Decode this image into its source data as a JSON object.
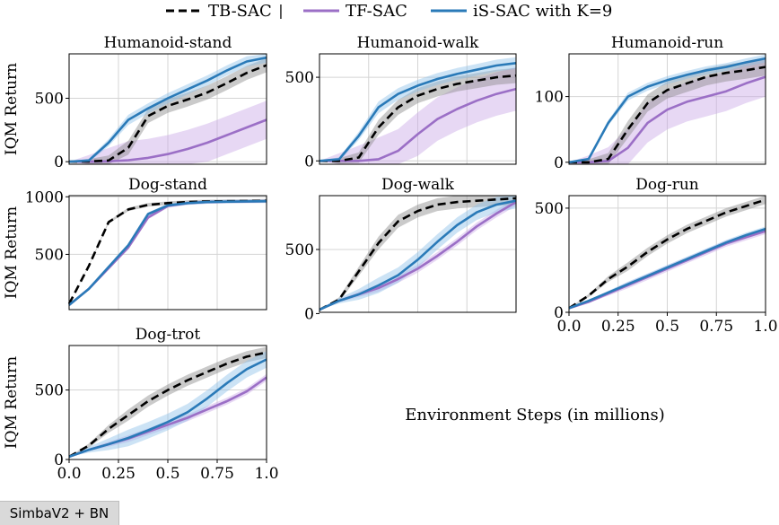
{
  "legend": {
    "items": [
      {
        "label": "TB-SAC",
        "color": "#000000",
        "dashed": true
      },
      {
        "label": "TF-SAC",
        "color": "#9b6fc6",
        "dashed": false
      },
      {
        "label": "iS-SAC with K=9",
        "color": "#2a7ab8",
        "dashed": false
      }
    ],
    "separator": "|"
  },
  "colors": {
    "tb": "#000000",
    "tb_band": "#8a8a8a",
    "tf": "#9b6fc6",
    "tf_band": "#c9a9e6",
    "is": "#2a7ab8",
    "is_band": "#8ec0e8"
  },
  "xlabel": "Environment Steps (in millions)",
  "footer_badge": "SimbaV2 + BN",
  "chart_data": [
    {
      "type": "line",
      "title": "Humanoid-stand",
      "ylabel": "IQM Return",
      "xlim": [
        0,
        1
      ],
      "ylim": [
        -20,
        850
      ],
      "yticks": [
        0,
        500
      ],
      "xticks": [],
      "x": [
        0,
        0.1,
        0.2,
        0.3,
        0.4,
        0.5,
        0.6,
        0.7,
        0.8,
        0.9,
        1.0
      ],
      "series": [
        {
          "name": "TB-SAC",
          "values": [
            0,
            2,
            10,
            110,
            360,
            440,
            490,
            545,
            620,
            700,
            760
          ],
          "band": 55
        },
        {
          "name": "TF-SAC",
          "values": [
            0,
            0,
            3,
            12,
            30,
            60,
            100,
            150,
            210,
            270,
            330
          ],
          "band": 150
        },
        {
          "name": "iS-SAC with K=9",
          "values": [
            0,
            10,
            150,
            330,
            420,
            500,
            570,
            640,
            720,
            790,
            820
          ],
          "band": 40
        }
      ]
    },
    {
      "type": "line",
      "title": "Humanoid-walk",
      "ylabel": "",
      "xlim": [
        0,
        1
      ],
      "ylim": [
        -20,
        640
      ],
      "yticks": [
        0,
        500
      ],
      "xticks": [],
      "x": [
        0,
        0.1,
        0.2,
        0.3,
        0.4,
        0.5,
        0.6,
        0.7,
        0.8,
        0.9,
        1.0
      ],
      "series": [
        {
          "name": "TB-SAC",
          "values": [
            0,
            0,
            20,
            200,
            320,
            390,
            430,
            460,
            480,
            500,
            510
          ],
          "band": 45
        },
        {
          "name": "TF-SAC",
          "values": [
            0,
            0,
            0,
            10,
            60,
            160,
            250,
            310,
            360,
            400,
            430
          ],
          "band": 130
        },
        {
          "name": "iS-SAC with K=9",
          "values": [
            0,
            10,
            150,
            320,
            400,
            450,
            490,
            520,
            545,
            570,
            585
          ],
          "band": 35
        }
      ]
    },
    {
      "type": "line",
      "title": "Humanoid-run",
      "ylabel": "",
      "xlim": [
        0,
        1
      ],
      "ylim": [
        -3,
        165
      ],
      "yticks": [
        0,
        100
      ],
      "xticks": [],
      "x": [
        0,
        0.1,
        0.2,
        0.3,
        0.4,
        0.5,
        0.6,
        0.7,
        0.8,
        0.9,
        1.0
      ],
      "series": [
        {
          "name": "TB-SAC",
          "values": [
            0,
            0,
            5,
            50,
            90,
            110,
            120,
            130,
            136,
            140,
            145
          ],
          "band": 13
        },
        {
          "name": "TF-SAC",
          "values": [
            0,
            0,
            2,
            22,
            60,
            80,
            92,
            100,
            108,
            120,
            130
          ],
          "band": 30
        },
        {
          "name": "iS-SAC with K=9",
          "values": [
            0,
            5,
            60,
            100,
            115,
            125,
            133,
            140,
            145,
            152,
            158
          ],
          "band": 6
        }
      ]
    },
    {
      "type": "line",
      "title": "Dog-stand",
      "ylabel": "IQM Return",
      "xlim": [
        0,
        1
      ],
      "ylim": [
        20,
        1010
      ],
      "yticks": [
        500,
        1000
      ],
      "xticks": [],
      "x": [
        0,
        0.1,
        0.2,
        0.3,
        0.4,
        0.5,
        0.6,
        0.7,
        0.8,
        0.9,
        1.0
      ],
      "series": [
        {
          "name": "TB-SAC",
          "values": [
            70,
            400,
            780,
            890,
            930,
            945,
            955,
            960,
            962,
            963,
            965
          ],
          "band": 15
        },
        {
          "name": "TF-SAC",
          "values": [
            60,
            200,
            380,
            560,
            820,
            920,
            945,
            955,
            958,
            960,
            962
          ],
          "band": 15
        },
        {
          "name": "iS-SAC with K=9",
          "values": [
            60,
            200,
            390,
            580,
            850,
            925,
            945,
            955,
            958,
            960,
            962
          ],
          "band": 15
        }
      ]
    },
    {
      "type": "line",
      "title": "Dog-walk",
      "ylabel": "",
      "xlim": [
        0,
        1
      ],
      "ylim": [
        10,
        920
      ],
      "yticks": [
        0,
        500
      ],
      "xticks": [],
      "x": [
        0,
        0.1,
        0.2,
        0.3,
        0.4,
        0.5,
        0.6,
        0.7,
        0.8,
        0.9,
        1.0
      ],
      "series": [
        {
          "name": "TB-SAC",
          "values": [
            30,
            110,
            330,
            550,
            720,
            800,
            850,
            870,
            880,
            890,
            900
          ],
          "band": 50
        },
        {
          "name": "TF-SAC",
          "values": [
            30,
            100,
            150,
            200,
            270,
            350,
            450,
            560,
            680,
            780,
            870
          ],
          "band": 30
        },
        {
          "name": "iS-SAC with K=9",
          "values": [
            30,
            100,
            150,
            220,
            300,
            420,
            560,
            690,
            790,
            850,
            880
          ],
          "band": 60
        }
      ]
    },
    {
      "type": "line",
      "title": "Dog-run",
      "ylabel": "",
      "xlim": [
        0,
        1
      ],
      "ylim": [
        0,
        560
      ],
      "yticks": [
        0,
        500
      ],
      "xticks": [
        0,
        0.25,
        0.5,
        0.75,
        1.0
      ],
      "xticklabels": [
        "0.0",
        "0.25",
        "0.5",
        "0.75",
        "1.0"
      ],
      "x": [
        0,
        0.1,
        0.2,
        0.3,
        0.4,
        0.5,
        0.6,
        0.7,
        0.8,
        0.9,
        1.0
      ],
      "series": [
        {
          "name": "TB-SAC",
          "values": [
            20,
            80,
            160,
            220,
            290,
            350,
            400,
            440,
            480,
            510,
            540
          ],
          "band": 20
        },
        {
          "name": "TF-SAC",
          "values": [
            20,
            50,
            90,
            130,
            170,
            210,
            250,
            290,
            330,
            360,
            390
          ],
          "band": 15
        },
        {
          "name": "iS-SAC with K=9",
          "values": [
            20,
            55,
            95,
            135,
            175,
            215,
            255,
            295,
            335,
            370,
            400
          ],
          "band": 12
        }
      ]
    },
    {
      "type": "line",
      "title": "Dog-trot",
      "ylabel": "IQM Return",
      "xlim": [
        0,
        1
      ],
      "ylim": [
        0,
        820
      ],
      "yticks": [
        0,
        500
      ],
      "xticks": [
        0,
        0.25,
        0.5,
        0.75,
        1.0
      ],
      "xticklabels": [
        "0.0",
        "0.25",
        "0.5",
        "0.75",
        "1.0"
      ],
      "x": [
        0,
        0.1,
        0.2,
        0.3,
        0.4,
        0.5,
        0.6,
        0.7,
        0.8,
        0.9,
        1.0
      ],
      "series": [
        {
          "name": "TB-SAC",
          "values": [
            20,
            100,
            220,
            320,
            420,
            500,
            570,
            630,
            690,
            740,
            770
          ],
          "band": 40
        },
        {
          "name": "TF-SAC",
          "values": [
            20,
            70,
            110,
            150,
            200,
            250,
            300,
            360,
            420,
            490,
            590
          ],
          "band": 25
        },
        {
          "name": "iS-SAC with K=9",
          "values": [
            20,
            70,
            110,
            155,
            210,
            270,
            340,
            440,
            550,
            650,
            720
          ],
          "band": 60
        }
      ]
    }
  ]
}
